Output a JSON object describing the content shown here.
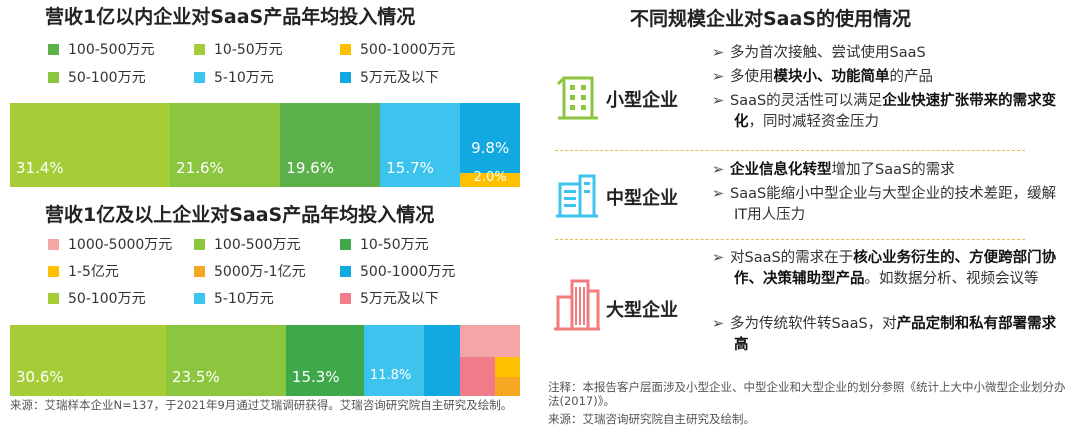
{
  "left": {
    "chart1": {
      "title": "营收1亿以内企业对SaaS产品年均投入情况",
      "legend": [
        {
          "label": "100-500万元",
          "color": "#5cb14a"
        },
        {
          "label": "10-50万元",
          "color": "#a7cc3a"
        },
        {
          "label": "500-1000万元",
          "color": "#ffc000"
        },
        {
          "label": "50-100万元",
          "color": "#8cc63e"
        },
        {
          "label": "5-10万元",
          "color": "#3cc4ee"
        },
        {
          "label": "5万元及以下",
          "color": "#12a8e0"
        }
      ],
      "segments": [
        {
          "name": "50-100万元",
          "value": 31.4,
          "label": "31.4%",
          "color": "#a5cd38"
        },
        {
          "name": "10-50万元",
          "value": 21.6,
          "label": "21.6%",
          "color": "#8cc63e"
        },
        {
          "name": "100-500万元",
          "value": 19.6,
          "label": "19.6%",
          "color": "#5cb14a"
        },
        {
          "name": "5-10万元",
          "value": 15.7,
          "label": "15.7%",
          "color": "#3cc4ee"
        },
        {
          "name": "5万元及以下",
          "value": 9.8,
          "label": "9.8%",
          "color": "#12a8e0"
        },
        {
          "name": "500-1000万元",
          "value": 2.0,
          "label": "2.0%",
          "color": "#ffc000"
        }
      ]
    },
    "chart2": {
      "title": "营收1亿及以上企业对SaaS产品年均投入情况",
      "legend": [
        {
          "label": "1000-5000万元",
          "color": "#f4a6a6"
        },
        {
          "label": "100-500万元",
          "color": "#8cc63e"
        },
        {
          "label": "10-50万元",
          "color": "#3fa84a"
        },
        {
          "label": "1-5亿元",
          "color": "#ffc000"
        },
        {
          "label": "5000万-1亿元",
          "color": "#f5a623"
        },
        {
          "label": "500-1000万元",
          "color": "#12a8e0"
        },
        {
          "label": "50-100万元",
          "color": "#a5cd38"
        },
        {
          "label": "5-10万元",
          "color": "#3cc4ee"
        },
        {
          "label": "5万元及以下",
          "color": "#f07c8a"
        }
      ],
      "segments": [
        {
          "name": "50-100万元",
          "value": 30.6,
          "label": "30.6%",
          "color": "#a5cd38"
        },
        {
          "name": "100-500万元",
          "value": 23.5,
          "label": "23.5%",
          "color": "#8cc63e"
        },
        {
          "name": "10-50万元",
          "value": 15.3,
          "label": "15.3%",
          "color": "#3fa84a"
        },
        {
          "name": "5-10万元",
          "value": 11.8,
          "label": "11.8%",
          "color": "#3cc4ee"
        },
        {
          "name": "500-1000万元",
          "value": 7.1,
          "label": "",
          "color": "#12a8e0"
        },
        {
          "name": "1000-5000万元",
          "value": 5.9,
          "label": "",
          "color": "#f4a6a6"
        },
        {
          "name": "5万元及以下",
          "value": 3.5,
          "label": "",
          "color": "#f07c8a"
        },
        {
          "name": "1-5亿元",
          "value": 1.2,
          "label": "",
          "color": "#ffc000"
        },
        {
          "name": "5000万-1亿元",
          "value": 1.1,
          "label": "",
          "color": "#f5a623"
        }
      ]
    },
    "source": "来源：艾瑞样本企业N=137，于2021年9月通过艾瑞调研获得。艾瑞咨询研究院自主研究及绘制。"
  },
  "right": {
    "title": "不同规模企业对SaaS的使用情况",
    "sections": [
      {
        "name": "小型企业",
        "icon": "small-building-icon",
        "color": "#8cc63e",
        "bullets": [
          [
            {
              "t": "多为首次接触、尝试使用SaaS",
              "b": false
            }
          ],
          [
            {
              "t": "多使用",
              "b": false
            },
            {
              "t": "模块小、功能简单",
              "b": true
            },
            {
              "t": "的产品",
              "b": false
            }
          ],
          [
            {
              "t": "SaaS的灵活性可以满足",
              "b": false
            },
            {
              "t": "企业快速扩张带来的需求变化",
              "b": true
            },
            {
              "t": "，同时减轻资金压力",
              "b": false
            }
          ]
        ]
      },
      {
        "name": "中型企业",
        "icon": "medium-building-icon",
        "color": "#3cc4ee",
        "bullets": [
          [
            {
              "t": "企业信息化转型",
              "b": true
            },
            {
              "t": "增加了SaaS的需求",
              "b": false
            }
          ],
          [
            {
              "t": "SaaS能缩小中型企业与大型企业的技术差距，缓解IT用人压力",
              "b": false
            }
          ]
        ]
      },
      {
        "name": "大型企业",
        "icon": "large-building-icon",
        "color": "#f07c7c",
        "bullets": [
          [
            {
              "t": "对SaaS的需求在于",
              "b": false
            },
            {
              "t": "核心业务衍生的、方便跨部门协作、决策辅助型产品",
              "b": true
            },
            {
              "t": "。如数据分析、视频会议等",
              "b": false
            }
          ],
          [
            {
              "t": "多为传统软件转SaaS，对",
              "b": false
            },
            {
              "t": "产品定制和私有部署需求高",
              "b": true
            }
          ]
        ]
      }
    ],
    "note": "注释：本报告客户层面涉及小型企业、中型企业和大型企业的划分参照《统计上大中小微型企业划分办法(2017)》。",
    "source": "来源：艾瑞咨询研究院自主研究及绘制。"
  },
  "chart_data": [
    {
      "type": "bar",
      "title": "营收1亿以内企业对SaaS产品年均投入情况",
      "categories": [
        "50-100万元",
        "10-50万元",
        "100-500万元",
        "5-10万元",
        "5万元及以下",
        "500-1000万元"
      ],
      "values": [
        31.4,
        21.6,
        19.6,
        15.7,
        9.8,
        2.0
      ],
      "unit": "%"
    },
    {
      "type": "bar",
      "title": "营收1亿及以上企业对SaaS产品年均投入情况",
      "categories": [
        "50-100万元",
        "100-500万元",
        "10-50万元",
        "5-10万元",
        "500-1000万元",
        "1000-5000万元",
        "5万元及以下",
        "1-5亿元",
        "5000万-1亿元"
      ],
      "values": [
        30.6,
        23.5,
        15.3,
        11.8,
        7.1,
        5.9,
        3.5,
        1.2,
        1.1
      ],
      "unit": "%"
    }
  ]
}
